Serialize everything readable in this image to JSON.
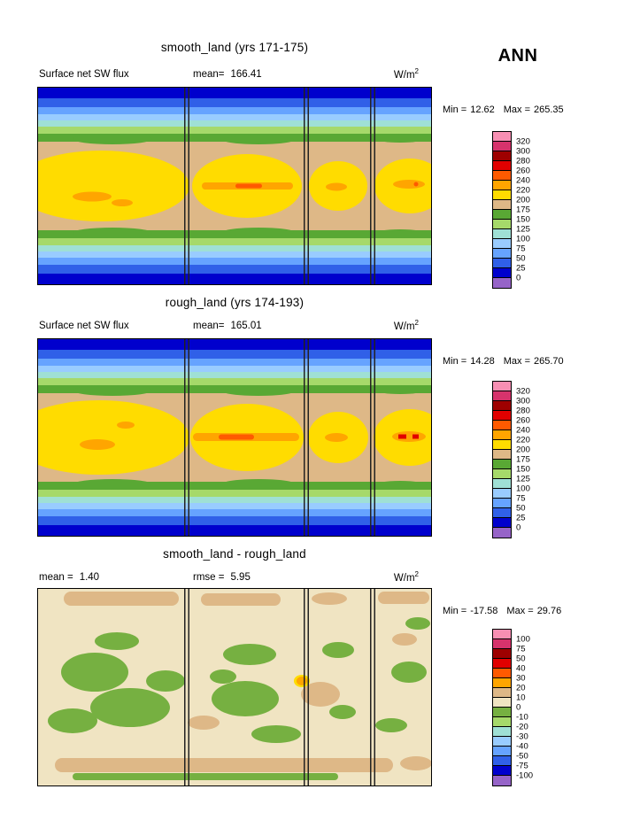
{
  "season": "ANN",
  "panels": [
    {
      "title": "smooth_land (yrs 171-175)",
      "left_label": "Surface net SW flux",
      "left_value": "",
      "mid_label": "mean=",
      "mid_value": "166.41",
      "units_base": "W/m",
      "units_exp": "2",
      "min_label": "Min =",
      "min_value": "12.62",
      "max_label": "Max =",
      "max_value": "265.35",
      "colorbar": {
        "labels": [
          "320",
          "300",
          "280",
          "260",
          "240",
          "220",
          "200",
          "175",
          "150",
          "125",
          "100",
          "75",
          "50",
          "25",
          "0"
        ],
        "colors": [
          "#F78FB3",
          "#D6336C",
          "#9E0000",
          "#E10000",
          "#FF5A00",
          "#FFA500",
          "#FFDC00",
          "#DEB887",
          "#59A834",
          "#A6D96A",
          "#9FE0D5",
          "#99CCFF",
          "#66A3FF",
          "#3060E8",
          "#0000CD",
          "#9664C8"
        ]
      }
    },
    {
      "title": "rough_land (yrs 174-193)",
      "left_label": "Surface net SW flux",
      "left_value": "",
      "mid_label": "mean=",
      "mid_value": "165.01",
      "units_base": "W/m",
      "units_exp": "2",
      "min_label": "Min =",
      "min_value": "14.28",
      "max_label": "Max =",
      "max_value": "265.70",
      "colorbar": {
        "labels": [
          "320",
          "300",
          "280",
          "260",
          "240",
          "220",
          "200",
          "175",
          "150",
          "125",
          "100",
          "75",
          "50",
          "25",
          "0"
        ],
        "colors": [
          "#F78FB3",
          "#D6336C",
          "#9E0000",
          "#E10000",
          "#FF5A00",
          "#FFA500",
          "#FFDC00",
          "#DEB887",
          "#59A834",
          "#A6D96A",
          "#9FE0D5",
          "#99CCFF",
          "#66A3FF",
          "#3060E8",
          "#0000CD",
          "#9664C8"
        ]
      }
    },
    {
      "title": "smooth_land - rough_land",
      "left_label": "mean =",
      "left_value": "1.40",
      "mid_label": "rmse =",
      "mid_value": "5.95",
      "units_base": "W/m",
      "units_exp": "2",
      "min_label": "Min =",
      "min_value": "-17.58",
      "max_label": "Max =",
      "max_value": "29.76",
      "colorbar": {
        "labels": [
          "100",
          "75",
          "50",
          "40",
          "30",
          "20",
          "10",
          "0",
          "-10",
          "-20",
          "-30",
          "-40",
          "-50",
          "-75",
          "-100"
        ],
        "colors": [
          "#F78FB3",
          "#D6336C",
          "#9E0000",
          "#E10000",
          "#FF5A00",
          "#FFA500",
          "#DEB887",
          "#F0E4C2",
          "#76B041",
          "#A6D96A",
          "#9FE0D5",
          "#99CCFF",
          "#66A3FF",
          "#3060E8",
          "#0000CD",
          "#9664C8"
        ]
      }
    }
  ],
  "chart_data": [
    {
      "type": "heatmap",
      "title": "smooth_land (yrs 171-175)",
      "variable": "Surface net SW flux",
      "units": "W/m2",
      "season": "ANN",
      "stats": {
        "mean": 166.41,
        "min": 12.62,
        "max": 265.35
      },
      "contour_levels": [
        0,
        25,
        50,
        75,
        100,
        125,
        150,
        175,
        200,
        220,
        240,
        260,
        280,
        300,
        320
      ],
      "palette_low_to_high": [
        "#9664C8",
        "#0000CD",
        "#3060E8",
        "#66A3FF",
        "#99CCFF",
        "#9FE0D5",
        "#A6D96A",
        "#59A834",
        "#DEB887",
        "#FFDC00",
        "#FFA500",
        "#FF5A00",
        "#E10000",
        "#9E0000",
        "#D6336C",
        "#F78FB3"
      ],
      "pattern": "zonal bands: ~0-50 W/m2 (dark blue) at poles rising through blue/cyan/green bands to tan (175-200) and yellow (200-220) in the tropics with orange streaks (220-260) along the equator; black vertical lines mark rectangular land column edges"
    },
    {
      "type": "heatmap",
      "title": "rough_land (yrs 174-193)",
      "variable": "Surface net SW flux",
      "units": "W/m2",
      "season": "ANN",
      "stats": {
        "mean": 165.01,
        "min": 14.28,
        "max": 265.7
      },
      "contour_levels": [
        0,
        25,
        50,
        75,
        100,
        125,
        150,
        175,
        200,
        220,
        240,
        260,
        280,
        300,
        320
      ],
      "palette_low_to_high": [
        "#9664C8",
        "#0000CD",
        "#3060E8",
        "#66A3FF",
        "#99CCFF",
        "#9FE0D5",
        "#A6D96A",
        "#59A834",
        "#DEB887",
        "#FFDC00",
        "#FFA500",
        "#FF5A00",
        "#E10000",
        "#9E0000",
        "#D6336C",
        "#F78FB3"
      ],
      "pattern": "same zonal-band structure as smooth_land with a stronger orange-red equatorial streak in the central land column"
    },
    {
      "type": "heatmap",
      "title": "smooth_land - rough_land",
      "variable": "difference of Surface net SW flux",
      "units": "W/m2",
      "season": "ANN",
      "stats": {
        "mean": 1.4,
        "rmse": 5.95,
        "min": -17.58,
        "max": 29.76
      },
      "contour_levels": [
        -100,
        -75,
        -50,
        -40,
        -30,
        -20,
        -10,
        0,
        10,
        20,
        30,
        40,
        50,
        75,
        100
      ],
      "palette_low_to_high": [
        "#9664C8",
        "#0000CD",
        "#3060E8",
        "#66A3FF",
        "#99CCFF",
        "#9FE0D5",
        "#A6D96A",
        "#76B041",
        "#F0E4C2",
        "#DEB887",
        "#FFA500",
        "#FF5A00",
        "#E10000",
        "#9E0000",
        "#D6336C",
        "#F78FB3"
      ],
      "pattern": "mostly near-zero (cream, 0 to 10) with scattered green patches (-10 to 0), tan patches (10-20) near map top/bottom and land edges, and one small orange spot (~20-30) at mid map"
    }
  ]
}
